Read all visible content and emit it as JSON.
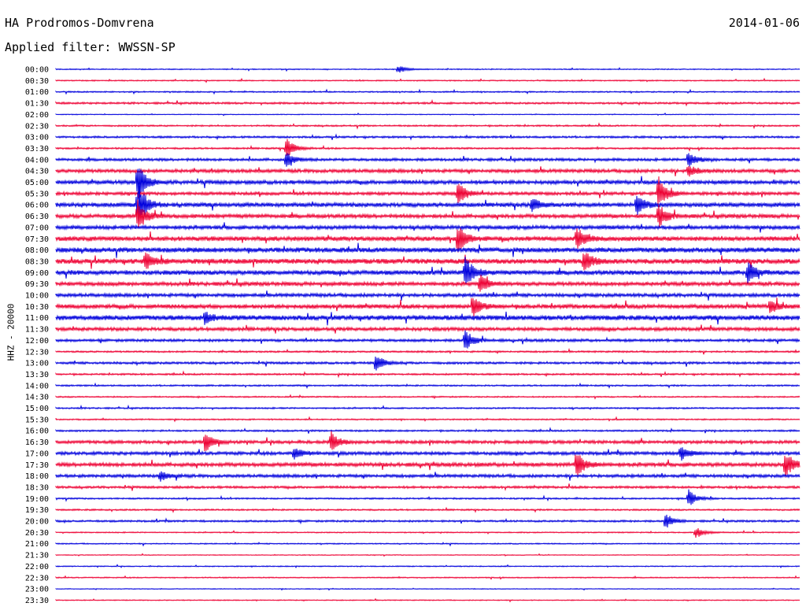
{
  "header": {
    "station": "HA Prodromos-Domvrena",
    "date": "2014-01-06",
    "filter_label": "Applied filter: WWSSN-SP"
  },
  "chart_data": {
    "type": "line",
    "ylabel": "HHZ - 20000",
    "colors": [
      "#0000dd",
      "#ee0033"
    ],
    "row_labels": [
      "00:00",
      "00:30",
      "01:00",
      "01:30",
      "02:00",
      "02:30",
      "03:00",
      "03:30",
      "04:00",
      "04:30",
      "05:00",
      "05:30",
      "06:00",
      "06:30",
      "07:00",
      "07:30",
      "08:00",
      "08:30",
      "09:00",
      "09:30",
      "10:00",
      "10:30",
      "11:00",
      "11:30",
      "12:00",
      "12:30",
      "13:00",
      "13:30",
      "14:00",
      "14:30",
      "15:00",
      "15:30",
      "16:00",
      "16:30",
      "17:00",
      "17:30",
      "18:00",
      "18:30",
      "19:00",
      "19:30",
      "20:00",
      "20:30",
      "21:00",
      "21:30",
      "22:00",
      "22:30",
      "23:00",
      "23:30"
    ],
    "noise_level": [
      0.5,
      0.6,
      0.7,
      1.0,
      0.4,
      0.8,
      1.0,
      0.9,
      1.4,
      1.8,
      2.0,
      1.6,
      2.2,
      2.0,
      2.0,
      2.4,
      2.6,
      2.6,
      2.4,
      2.0,
      1.8,
      2.2,
      2.6,
      1.8,
      1.4,
      0.9,
      1.2,
      0.9,
      0.8,
      0.7,
      0.8,
      0.7,
      0.9,
      1.6,
      1.7,
      2.0,
      1.6,
      1.2,
      0.8,
      0.8,
      1.0,
      0.6,
      0.6,
      0.4,
      0.5,
      0.6,
      0.4,
      0.5
    ],
    "events": [
      {
        "row": 0,
        "t": 0.46,
        "amp": 5
      },
      {
        "row": 7,
        "t": 0.31,
        "amp": 14
      },
      {
        "row": 8,
        "t": 0.31,
        "amp": 10
      },
      {
        "row": 8,
        "t": 0.85,
        "amp": 12
      },
      {
        "row": 9,
        "t": 0.85,
        "amp": 8
      },
      {
        "row": 10,
        "t": 0.11,
        "amp": 26
      },
      {
        "row": 12,
        "t": 0.11,
        "amp": 30
      },
      {
        "row": 13,
        "t": 0.11,
        "amp": 20
      },
      {
        "row": 11,
        "t": 0.54,
        "amp": 16
      },
      {
        "row": 12,
        "t": 0.64,
        "amp": 8
      },
      {
        "row": 12,
        "t": 0.78,
        "amp": 14
      },
      {
        "row": 11,
        "t": 0.81,
        "amp": 22
      },
      {
        "row": 13,
        "t": 0.81,
        "amp": 16
      },
      {
        "row": 15,
        "t": 0.54,
        "amp": 18
      },
      {
        "row": 15,
        "t": 0.7,
        "amp": 16
      },
      {
        "row": 17,
        "t": 0.12,
        "amp": 12
      },
      {
        "row": 17,
        "t": 0.71,
        "amp": 14
      },
      {
        "row": 18,
        "t": 0.55,
        "amp": 22
      },
      {
        "row": 18,
        "t": 0.93,
        "amp": 14
      },
      {
        "row": 19,
        "t": 0.57,
        "amp": 12
      },
      {
        "row": 21,
        "t": 0.56,
        "amp": 14
      },
      {
        "row": 21,
        "t": 0.96,
        "amp": 10
      },
      {
        "row": 22,
        "t": 0.2,
        "amp": 8
      },
      {
        "row": 24,
        "t": 0.55,
        "amp": 14
      },
      {
        "row": 26,
        "t": 0.43,
        "amp": 12
      },
      {
        "row": 33,
        "t": 0.2,
        "amp": 14
      },
      {
        "row": 33,
        "t": 0.37,
        "amp": 13
      },
      {
        "row": 34,
        "t": 0.32,
        "amp": 9
      },
      {
        "row": 34,
        "t": 0.84,
        "amp": 9
      },
      {
        "row": 35,
        "t": 0.7,
        "amp": 18
      },
      {
        "row": 35,
        "t": 0.98,
        "amp": 18
      },
      {
        "row": 36,
        "t": 0.14,
        "amp": 7
      },
      {
        "row": 38,
        "t": 0.85,
        "amp": 12
      },
      {
        "row": 40,
        "t": 0.82,
        "amp": 10
      },
      {
        "row": 41,
        "t": 0.86,
        "amp": 8
      }
    ]
  }
}
